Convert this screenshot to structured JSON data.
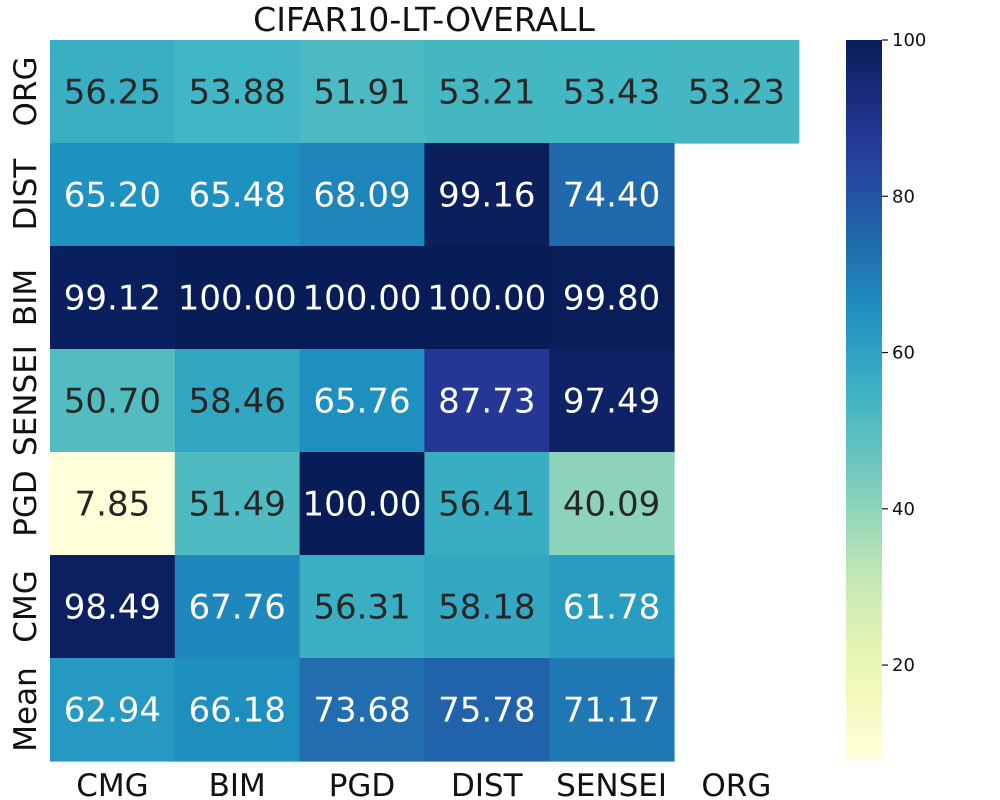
{
  "chart_data": {
    "type": "heatmap",
    "title": "CIFAR10-LT-OVERALL",
    "x_categories": [
      "CMG",
      "BIM",
      "PGD",
      "DIST",
      "SENSEI",
      "ORG"
    ],
    "y_categories": [
      "ORG",
      "DIST",
      "BIM",
      "SENSEI",
      "PGD",
      "CMG",
      "Mean"
    ],
    "values": [
      [
        56.25,
        53.88,
        51.91,
        53.21,
        53.43,
        53.23
      ],
      [
        65.2,
        65.48,
        68.09,
        99.16,
        74.4,
        null
      ],
      [
        99.12,
        100.0,
        100.0,
        100.0,
        99.8,
        null
      ],
      [
        50.7,
        58.46,
        65.76,
        87.73,
        97.49,
        null
      ],
      [
        7.85,
        51.49,
        100.0,
        56.41,
        40.09,
        null
      ],
      [
        98.49,
        67.76,
        56.31,
        58.18,
        61.78,
        null
      ],
      [
        62.94,
        66.18,
        73.68,
        75.78,
        71.17,
        null
      ]
    ],
    "value_format": "2 decimals",
    "colormap": "YlGnBu",
    "colorbar": {
      "vmin": 7.85,
      "vmax": 100,
      "ticks": [
        20,
        40,
        60,
        80,
        100
      ]
    }
  }
}
